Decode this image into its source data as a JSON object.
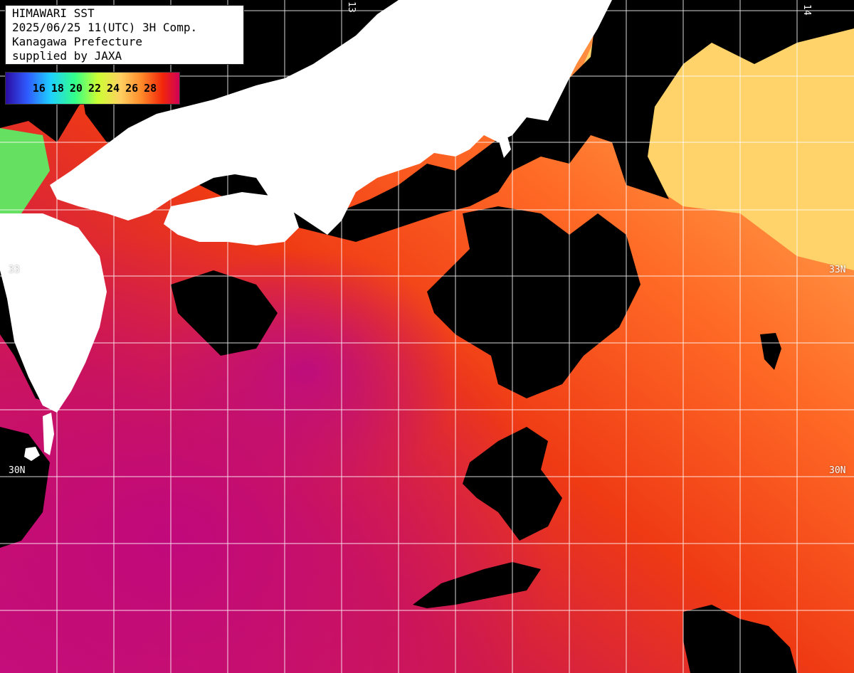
{
  "header": {
    "lines": [
      "HIMAWARI SST",
      "2025/06/25 11(UTC) 3H Comp.",
      "Kanagawa Prefecture",
      "supplied by JAXA"
    ]
  },
  "legend": {
    "ticks": [
      "16",
      "18",
      "20",
      "22",
      "24",
      "26",
      "28"
    ],
    "colors": [
      "#2b0aa0",
      "#2f5cff",
      "#1ed0ff",
      "#33ff88",
      "#ccff33",
      "#ffd060",
      "#ff8a2a",
      "#f2260a",
      "#d0005a"
    ]
  },
  "grid_labels": {
    "lat_33_right": "33N",
    "lat_33_left": "33",
    "lat_30_left": "30N",
    "lat_30_right": "30N",
    "lon_top_1": "13",
    "lon_top_2": "14"
  },
  "colors": {
    "land": "#ffffff",
    "cloud": "#000000",
    "gridline": "#ffffff"
  }
}
